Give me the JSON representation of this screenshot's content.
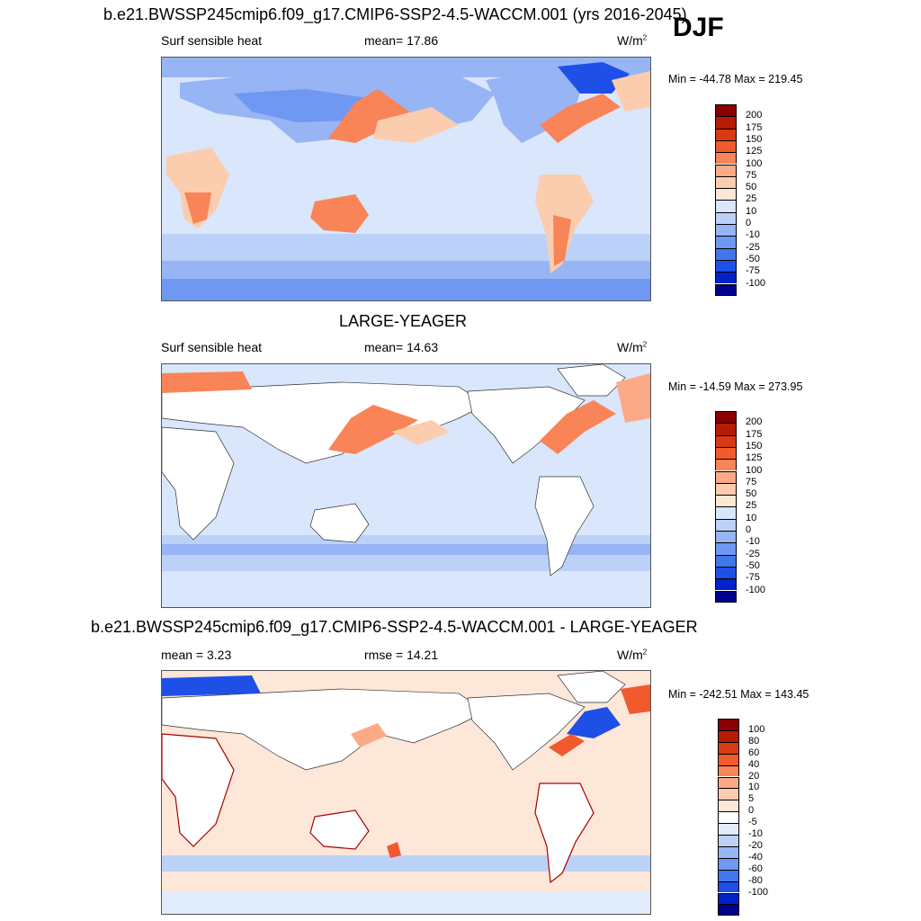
{
  "season": "DJF",
  "colors": {
    "abs_scale": [
      "#00008f",
      "#0022c8",
      "#1e4fe6",
      "#4277ec",
      "#6f98f2",
      "#97b5f5",
      "#bcd1f8",
      "#d9e6fb",
      "#fbe7d6",
      "#fcccaf",
      "#fcaa86",
      "#f98457",
      "#f05a2c",
      "#d83a14",
      "#b51c05",
      "#8a0000"
    ],
    "diff_scale": [
      "#00008f",
      "#0022c8",
      "#1e4fe6",
      "#4277ec",
      "#6f98f2",
      "#97b5f5",
      "#bcd1f8",
      "#e1ecfc",
      "#ffffff",
      "#fde7d9",
      "#fcccaf",
      "#fcaa86",
      "#f98457",
      "#f05a2c",
      "#d83a14",
      "#b51c05",
      "#8a0000"
    ],
    "land_white": "#ffffff"
  },
  "panels": [
    {
      "title": "b.e21.BWSSP245cmip6.f09_g17.CMIP6-SSP2-4.5-WACCM.001 (yrs 2016-2045)",
      "left_label": "Surf sensible heat",
      "center_label": "mean=  17.86",
      "units": "W/m",
      "units_sup": "2",
      "minmax": "Min = -44.78 Max = 219.45",
      "levels": [
        "200",
        "175",
        "150",
        "125",
        "100",
        "75",
        "50",
        "25",
        "10",
        "0",
        "-10",
        "-25",
        "-50",
        "-75",
        "-100"
      ],
      "scale": "abs"
    },
    {
      "title": "LARGE-YEAGER",
      "left_label": "Surf sensible heat",
      "center_label": "mean=  14.63",
      "units": "W/m",
      "units_sup": "2",
      "minmax": "Min = -14.59 Max = 273.95",
      "levels": [
        "200",
        "175",
        "150",
        "125",
        "100",
        "75",
        "50",
        "25",
        "10",
        "0",
        "-10",
        "-25",
        "-50",
        "-75",
        "-100"
      ],
      "scale": "abs"
    },
    {
      "title": "b.e21.BWSSP245cmip6.f09_g17.CMIP6-SSP2-4.5-WACCM.001 - LARGE-YEAGER",
      "left_label": "mean =   3.23",
      "center_label": "rmse =  14.21",
      "units": "W/m",
      "units_sup": "2",
      "minmax": "Min = -242.51 Max = 143.45",
      "levels": [
        "100",
        "80",
        "60",
        "40",
        "20",
        "10",
        "5",
        "0",
        "-5",
        "-10",
        "-20",
        "-40",
        "-60",
        "-80",
        "-100"
      ],
      "scale": "diff"
    }
  ]
}
